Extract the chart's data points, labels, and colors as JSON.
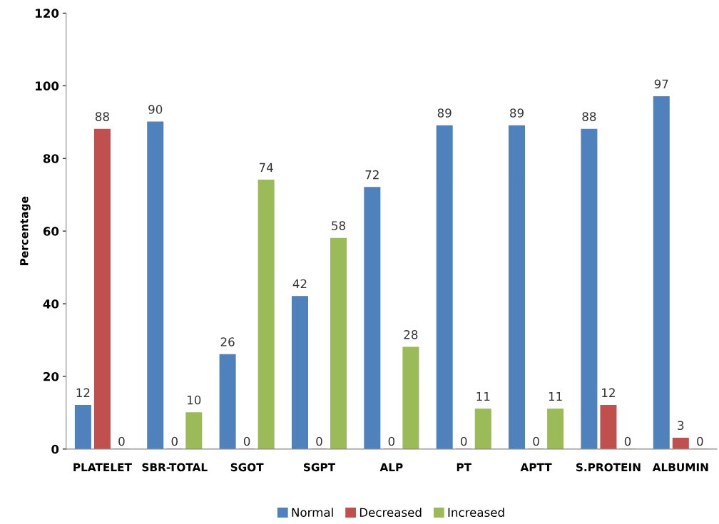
{
  "chart_data": {
    "type": "bar",
    "ylabel": "Percentage",
    "categories": [
      "PLATELET",
      "SBR-TOTAL",
      "SGOT",
      "SGPT",
      "ALP",
      "PT",
      "APTT",
      "S.PROTEIN",
      "ALBUMIN"
    ],
    "series": [
      {
        "name": "Normal",
        "color": "#4f81bd",
        "values": [
          12,
          90,
          26,
          42,
          72,
          89,
          89,
          88,
          97
        ]
      },
      {
        "name": "Decreased",
        "color": "#c0504d",
        "values": [
          88,
          0,
          0,
          0,
          0,
          0,
          0,
          12,
          3
        ]
      },
      {
        "name": "Increased",
        "color": "#9bbb59",
        "values": [
          0,
          10,
          74,
          58,
          28,
          11,
          11,
          0,
          0
        ]
      }
    ],
    "ylim": [
      0,
      120
    ],
    "yticks": [
      0,
      20,
      40,
      60,
      80,
      100,
      120
    ],
    "data_labels": true,
    "legend": "bottom",
    "grid": false
  }
}
